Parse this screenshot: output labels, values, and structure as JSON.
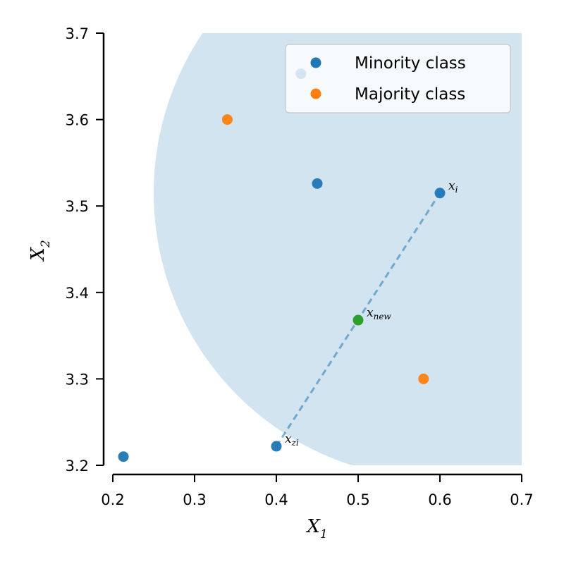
{
  "chart_data": {
    "type": "scatter",
    "xlabel": "X",
    "xlabel_sub": "1",
    "ylabel": "X",
    "ylabel_sub": "2",
    "xlim": [
      0.2,
      0.7
    ],
    "ylim": [
      3.2,
      3.7
    ],
    "x_ticks": [
      "0.2",
      "0.3",
      "0.4",
      "0.5",
      "0.6",
      "0.7"
    ],
    "y_ticks": [
      "3.2",
      "3.3",
      "3.4",
      "3.5",
      "3.6",
      "3.7"
    ],
    "grid": false,
    "legend_position": "top-right",
    "series": [
      {
        "name": "Minority class",
        "color": "#1f77b4",
        "points": [
          {
            "x": 0.213,
            "y": 3.21
          },
          {
            "x": 0.4,
            "y": 3.222
          },
          {
            "x": 0.45,
            "y": 3.526
          },
          {
            "x": 0.43,
            "y": 3.653
          },
          {
            "x": 0.6,
            "y": 3.515
          }
        ]
      },
      {
        "name": "Majority class",
        "color": "#ff7f0e",
        "points": [
          {
            "x": 0.34,
            "y": 3.6
          },
          {
            "x": 0.58,
            "y": 3.3
          }
        ]
      }
    ],
    "new_sample": {
      "x": 0.5,
      "y": 3.368,
      "color": "#2ca02c"
    },
    "segment": {
      "from": {
        "x": 0.4,
        "y": 3.222
      },
      "to": {
        "x": 0.6,
        "y": 3.515
      },
      "color": "#1f77b4",
      "style": "dashed"
    },
    "neighborhood": {
      "center": {
        "x": 0.6,
        "y": 3.515
      },
      "radius_x": 0.35,
      "color": "#1f77b4",
      "alpha": 0.2
    },
    "annotations": [
      {
        "base": "x",
        "sub": "i",
        "x": 0.6,
        "y": 3.515
      },
      {
        "base": "x",
        "sub": "new",
        "x": 0.5,
        "y": 3.368
      },
      {
        "base": "x",
        "sub": "zi",
        "x": 0.4,
        "y": 3.222
      }
    ]
  }
}
